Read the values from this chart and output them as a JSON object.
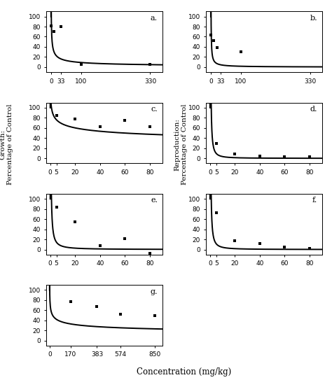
{
  "panels": [
    {
      "label": "a.",
      "xticks": [
        0,
        33,
        100,
        330
      ],
      "xlim": [
        -15,
        370
      ],
      "scatter_x": [
        0,
        10,
        33,
        100,
        330
      ],
      "scatter_y": [
        82,
        70,
        80,
        5,
        5
      ],
      "curve_params": {
        "type": "power",
        "a": 100,
        "b": -0.52
      },
      "row": 0,
      "col": 0
    },
    {
      "label": "b.",
      "xticks": [
        0,
        33,
        100,
        330
      ],
      "xlim": [
        -15,
        370
      ],
      "scatter_x": [
        0,
        10,
        20,
        100
      ],
      "scatter_y": [
        63,
        52,
        38,
        30
      ],
      "curve_params": {
        "type": "power",
        "a": 100,
        "b": -0.88
      },
      "row": 0,
      "col": 1
    },
    {
      "label": "c.",
      "xticks": [
        0,
        5,
        20,
        40,
        60,
        80
      ],
      "xlim": [
        -3,
        90
      ],
      "scatter_x": [
        5,
        20,
        40,
        60,
        80
      ],
      "scatter_y": [
        85,
        78,
        63,
        75,
        63
      ],
      "curve_params": {
        "type": "power",
        "a": 100,
        "b": -0.17
      },
      "row": 1,
      "col": 0
    },
    {
      "label": "d.",
      "xticks": [
        0,
        5,
        20,
        40,
        60,
        80
      ],
      "xlim": [
        -3,
        90
      ],
      "scatter_x": [
        5,
        20,
        40,
        60,
        80
      ],
      "scatter_y": [
        30,
        8,
        5,
        3,
        3
      ],
      "curve_params": {
        "type": "power",
        "a": 100,
        "b": -1.45
      },
      "row": 1,
      "col": 1
    },
    {
      "label": "e.",
      "xticks": [
        0,
        5,
        20,
        40,
        60,
        80
      ],
      "xlim": [
        -3,
        90
      ],
      "scatter_x": [
        5,
        20,
        40,
        60,
        80
      ],
      "scatter_y": [
        83,
        55,
        8,
        22,
        -8
      ],
      "curve_params": {
        "type": "power",
        "a": 100,
        "b": -1.2
      },
      "row": 2,
      "col": 0
    },
    {
      "label": "f.",
      "xticks": [
        0,
        5,
        20,
        40,
        60,
        80
      ],
      "xlim": [
        -3,
        90
      ],
      "scatter_x": [
        5,
        20,
        40,
        60,
        80
      ],
      "scatter_y": [
        72,
        17,
        12,
        5,
        2
      ],
      "curve_params": {
        "type": "power",
        "a": 100,
        "b": -1.35
      },
      "row": 2,
      "col": 1
    },
    {
      "label": "g.",
      "xticks": [
        0,
        170,
        383,
        574,
        850
      ],
      "xlim": [
        -25,
        910
      ],
      "scatter_x": [
        170,
        383,
        574,
        850
      ],
      "scatter_y": [
        77,
        67,
        53,
        49
      ],
      "curve_params": {
        "type": "power",
        "a": 100,
        "b": -0.215
      },
      "row": 3,
      "col": 0
    }
  ],
  "ylim": [
    -10,
    110
  ],
  "yticks": [
    0,
    20,
    40,
    60,
    80,
    100
  ],
  "ylabel_left": "Growth:\nPercentage of Control",
  "ylabel_right": "Reproduction:\nPercentage of Control",
  "xlabel": "Concentration (mg/kg)",
  "bg_color": "#ffffff",
  "line_color": "#000000",
  "scatter_color": "#000000",
  "marker": "s",
  "marker_size": 3.5
}
